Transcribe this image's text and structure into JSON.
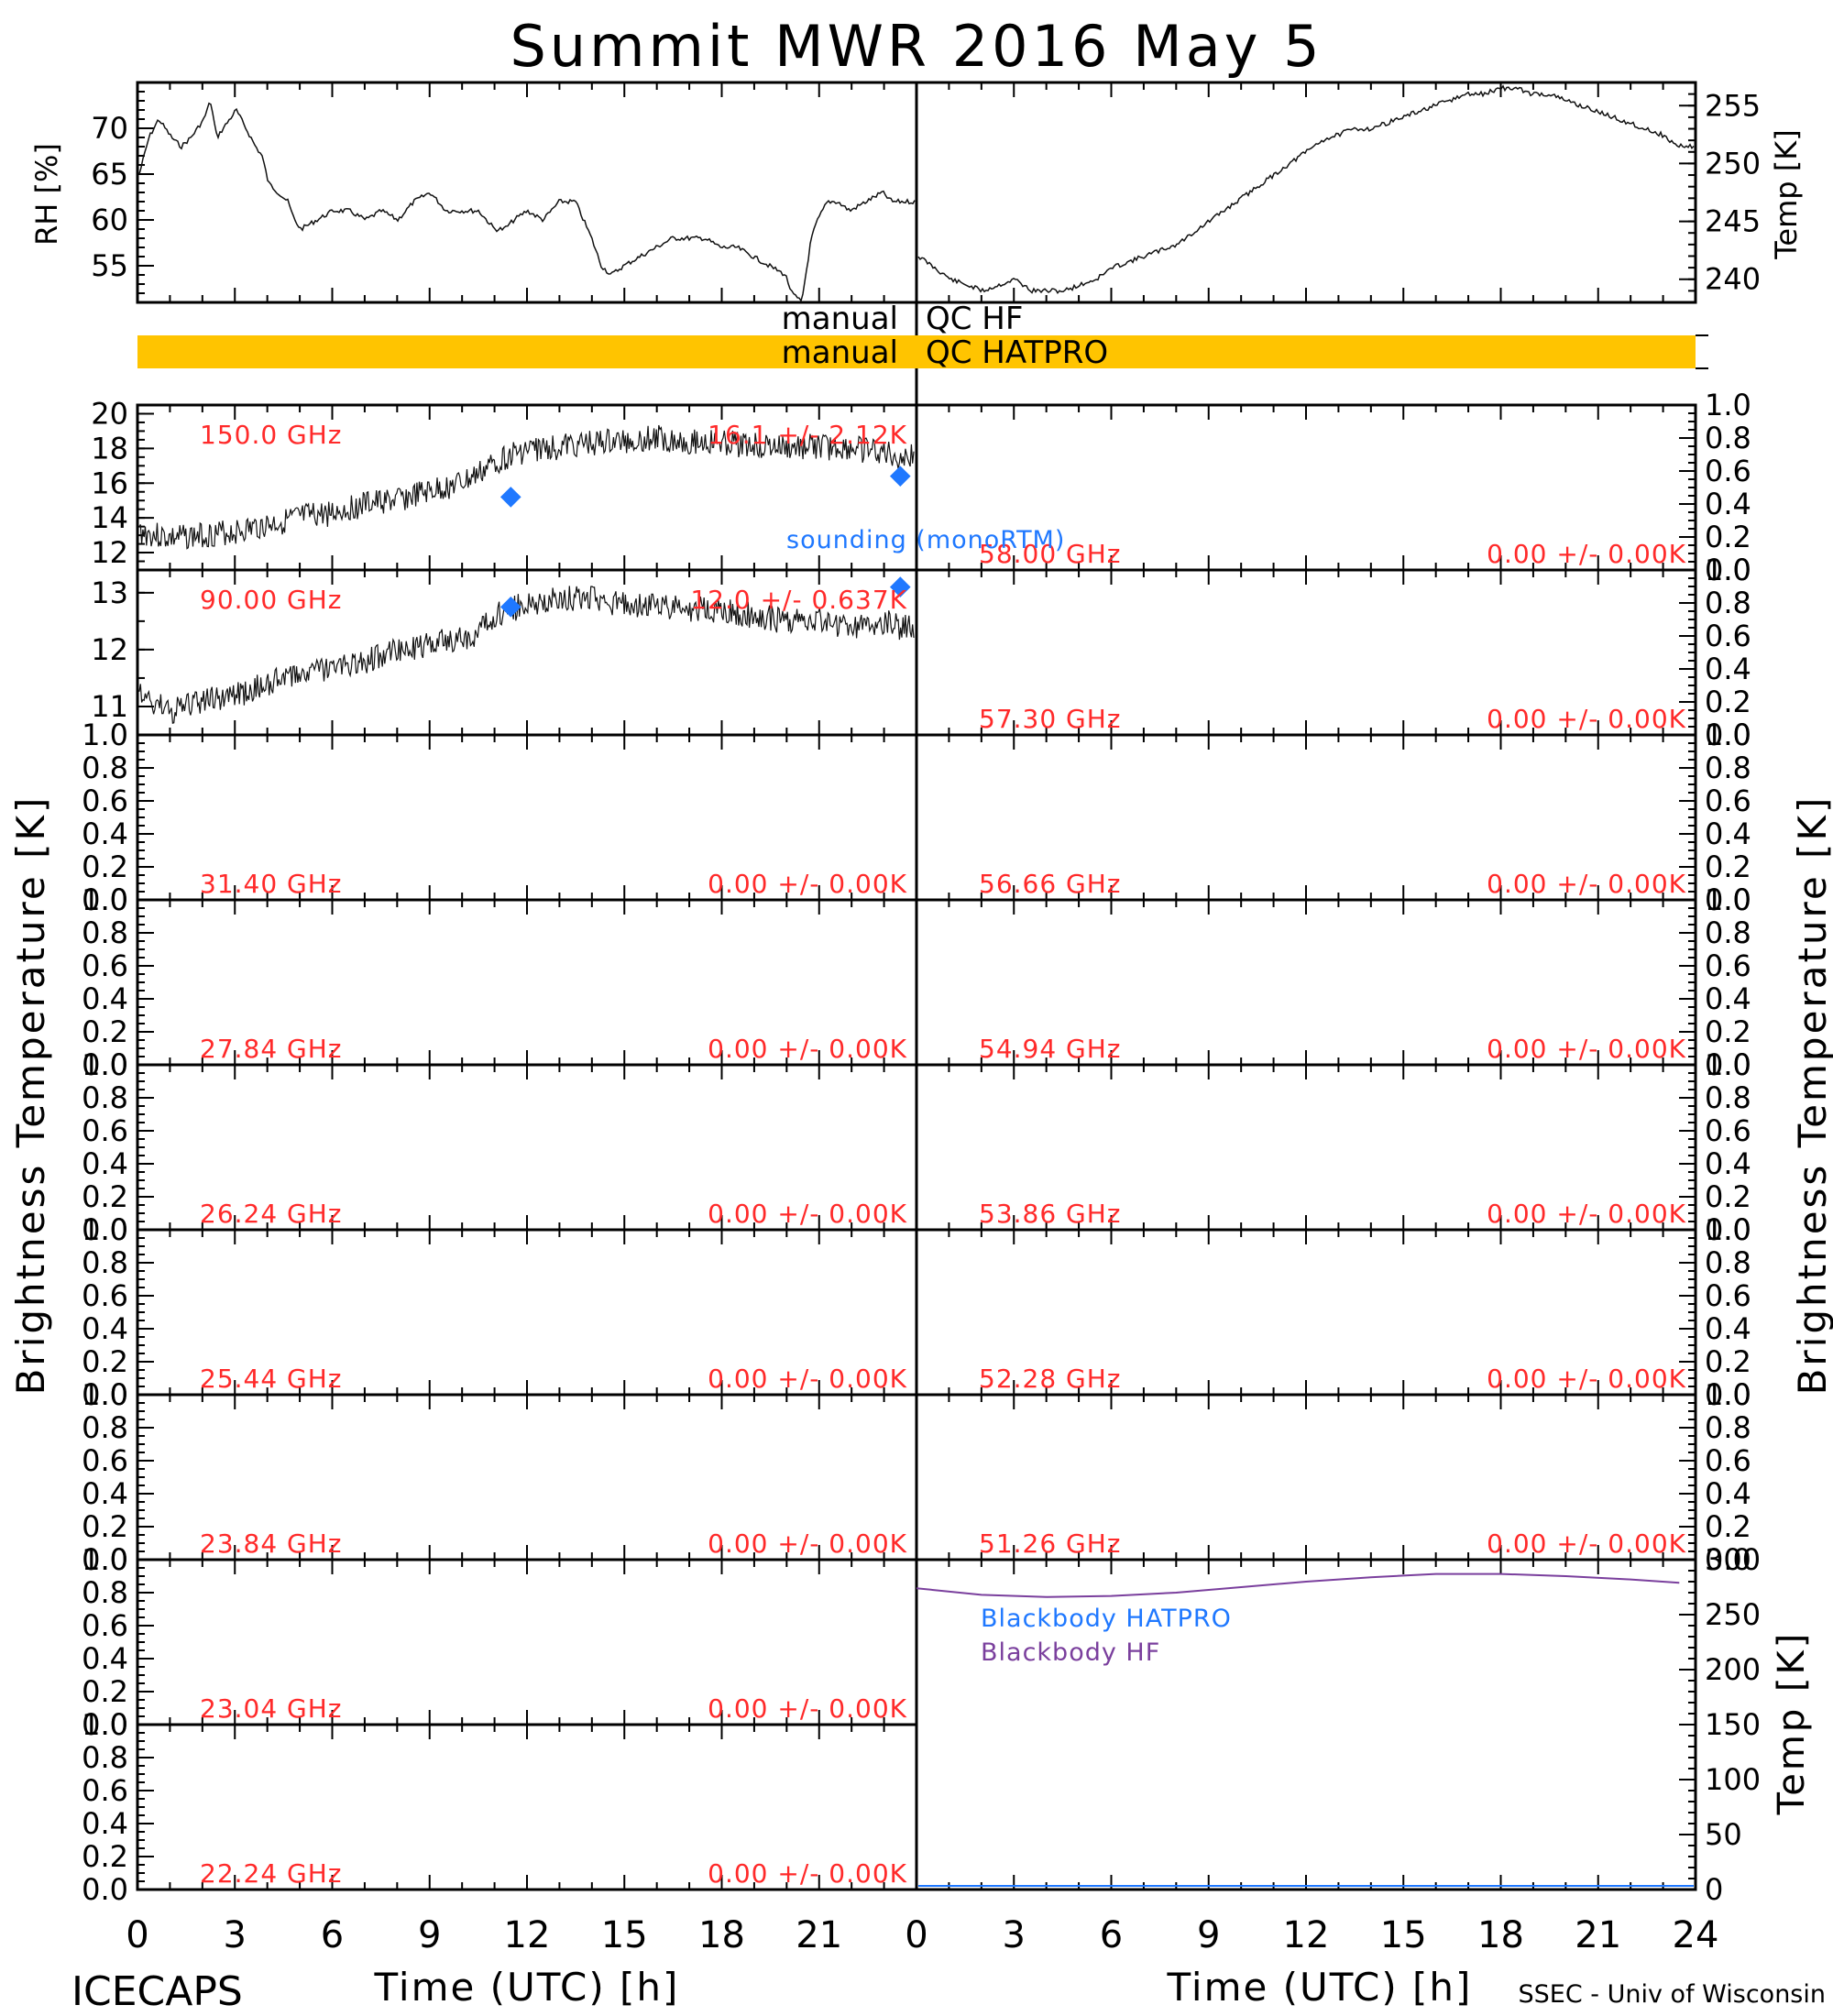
{
  "title": "Summit MWR 2016 May  5",
  "footer": {
    "left": "ICECAPS",
    "right": "SSEC - Univ of Wisconsin"
  },
  "colors": {
    "axis": "#000000",
    "trace": "#111111",
    "label_red": "#ff2a2a",
    "blue": "#1f78ff",
    "purple": "#7a3f9d",
    "qc_bar": "#ffc400"
  },
  "panel_texts": {
    "rh_ylabel": "RH [%]",
    "temp_ylabel": "Temp [K]",
    "tb_ylabel": "Brightness Temperature [K]",
    "xlabel": "Time (UTC) [h]",
    "qc_hf_left": "manual",
    "qc_hf_right": "QC HF",
    "qc_hatpro_left": "manual",
    "qc_hatpro_right": "QC HATPRO",
    "sounding_label": "sounding (monoRTM)",
    "bb_hatpro": "Blackbody HATPRO",
    "bb_hf": "Blackbody HF"
  },
  "chart_data": [
    {
      "id": "rh",
      "type": "line",
      "ylabel": "RH [%]",
      "xlim": [
        0,
        24
      ],
      "ylim": [
        51,
        75
      ],
      "yticks": [
        55,
        60,
        65,
        70
      ],
      "x": [
        0,
        0.3,
        0.6,
        1,
        1.3,
        1.6,
        2,
        2.2,
        2.4,
        2.6,
        3,
        3.3,
        3.6,
        3.8,
        4,
        4.3,
        4.6,
        4.8,
        5,
        5.5,
        6,
        6.5,
        7,
        7.5,
        8,
        8.5,
        9,
        9.5,
        10,
        10.5,
        11,
        11.3,
        11.6,
        12,
        12.5,
        13,
        13.5,
        14,
        14.3,
        14.6,
        15,
        15.5,
        16,
        16.5,
        17,
        17.5,
        18,
        18.5,
        19,
        19.5,
        20,
        20.2,
        20.5,
        20.8,
        21,
        21.3,
        21.6,
        22,
        22.5,
        23,
        23.3
      ],
      "y": [
        65,
        69,
        71,
        69,
        68,
        69,
        71,
        73,
        69,
        70,
        72,
        70,
        68,
        67,
        64,
        63,
        62,
        60,
        59,
        60,
        61,
        61,
        60,
        61,
        60,
        62,
        63,
        61,
        61,
        61,
        59,
        59,
        60,
        61,
        60,
        62,
        62,
        58,
        55,
        54,
        55,
        56,
        57,
        58,
        58,
        58,
        57,
        57,
        56,
        55,
        54,
        52,
        51,
        58,
        60,
        62,
        62,
        61,
        62,
        63,
        62
      ]
    },
    {
      "id": "air_temp",
      "type": "line",
      "ylabel": "Temp [K]",
      "xlim": [
        0,
        24
      ],
      "ylim": [
        238,
        257
      ],
      "yticks": [
        240,
        245,
        250,
        255
      ],
      "x": [
        0,
        0.5,
        1,
        1.5,
        2,
        2.5,
        3,
        3.5,
        4,
        4.5,
        5,
        5.5,
        6,
        6.5,
        7,
        7.5,
        8,
        8.5,
        9,
        9.5,
        10,
        10.5,
        11,
        11.5,
        12,
        12.5,
        13,
        13.5,
        14,
        14.5,
        15,
        15.5,
        16,
        16.5,
        17,
        17.5,
        18,
        18.5,
        19,
        19.5,
        20,
        20.5,
        21,
        21.5,
        22,
        22.5,
        23,
        23.5
      ],
      "y": [
        242,
        241,
        240,
        239.5,
        239,
        239.5,
        240,
        239,
        239,
        239,
        239.5,
        240,
        241,
        241.5,
        242,
        242.5,
        243,
        244,
        245,
        246,
        247,
        248,
        249,
        250,
        251,
        252,
        252.5,
        253,
        253,
        253.5,
        254,
        254.5,
        255,
        255.5,
        256,
        256,
        256.5,
        256.5,
        256,
        256,
        255.5,
        255,
        254.5,
        254,
        253.5,
        253,
        252.5,
        251.5
      ]
    },
    {
      "id": "tb_150",
      "type": "line",
      "freq_label": "150.0 GHz",
      "stat_label": "16.1 +/- 2.12K",
      "ylim": [
        11,
        20.5
      ],
      "yticks": [
        12,
        14,
        16,
        18,
        20
      ],
      "x": [
        0,
        1,
        2,
        3,
        4,
        5,
        6,
        7,
        8,
        9,
        10,
        10.5,
        11,
        11.5,
        12,
        13,
        14,
        15,
        16,
        17,
        18,
        19,
        20,
        21,
        22,
        23,
        23.5
      ],
      "y": [
        13.2,
        12.8,
        13.0,
        13.2,
        13.6,
        14.0,
        14.3,
        14.8,
        15.0,
        15.5,
        16.0,
        16.5,
        17.2,
        17.6,
        17.9,
        18.1,
        18.3,
        18.4,
        18.6,
        18.4,
        18.3,
        18.2,
        18.0,
        18.1,
        18.0,
        17.8,
        17.5
      ],
      "sounding_points": [
        {
          "x": 11.5,
          "y": 15.2
        },
        {
          "x": 23.5,
          "y": 16.4
        }
      ]
    },
    {
      "id": "tb_90",
      "type": "line",
      "freq_label": "90.00 GHz",
      "stat_label": "12.0 +/- 0.637K",
      "ylim": [
        10.5,
        13.4
      ],
      "yticks": [
        11,
        12,
        13
      ],
      "x": [
        0,
        1,
        2,
        3,
        4,
        5,
        6,
        7,
        8,
        9,
        10,
        10.5,
        11,
        11.5,
        12,
        13,
        14,
        15,
        16,
        17,
        18,
        19,
        20,
        21,
        22,
        23,
        23.5
      ],
      "y": [
        11.2,
        10.9,
        11.1,
        11.2,
        11.4,
        11.6,
        11.7,
        11.8,
        12.0,
        12.1,
        12.2,
        12.3,
        12.6,
        12.7,
        12.8,
        12.9,
        12.9,
        12.8,
        12.8,
        12.7,
        12.7,
        12.6,
        12.5,
        12.5,
        12.4,
        12.5,
        12.4
      ],
      "sounding_points": [
        {
          "x": 11.5,
          "y": 12.75
        },
        {
          "x": 23.5,
          "y": 13.1
        }
      ]
    },
    {
      "id": "tb_31",
      "type": "line",
      "freq_label": "31.40 GHz",
      "stat_label": "0.00 +/- 0.00K"
    },
    {
      "id": "tb_2784",
      "type": "line",
      "freq_label": "27.84 GHz",
      "stat_label": "0.00 +/- 0.00K"
    },
    {
      "id": "tb_2624",
      "type": "line",
      "freq_label": "26.24 GHz",
      "stat_label": "0.00 +/- 0.00K"
    },
    {
      "id": "tb_2544",
      "type": "line",
      "freq_label": "25.44 GHz",
      "stat_label": "0.00 +/- 0.00K"
    },
    {
      "id": "tb_2384",
      "type": "line",
      "freq_label": "23.84 GHz",
      "stat_label": "0.00 +/- 0.00K"
    },
    {
      "id": "tb_2304",
      "type": "line",
      "freq_label": "23.04 GHz",
      "stat_label": "0.00 +/- 0.00K"
    },
    {
      "id": "tb_2224",
      "type": "line",
      "freq_label": "22.24 GHz",
      "stat_label": "0.00 +/- 0.00K"
    },
    {
      "id": "tb_5800",
      "type": "line",
      "freq_label": "58.00 GHz",
      "stat_label": "0.00 +/- 0.00K"
    },
    {
      "id": "tb_5730",
      "type": "line",
      "freq_label": "57.30 GHz",
      "stat_label": "0.00 +/- 0.00K"
    },
    {
      "id": "tb_5666",
      "type": "line",
      "freq_label": "56.66 GHz",
      "stat_label": "0.00 +/- 0.00K"
    },
    {
      "id": "tb_5494",
      "type": "line",
      "freq_label": "54.94 GHz",
      "stat_label": "0.00 +/- 0.00K"
    },
    {
      "id": "tb_5386",
      "type": "line",
      "freq_label": "53.86 GHz",
      "stat_label": "0.00 +/- 0.00K"
    },
    {
      "id": "tb_5228",
      "type": "line",
      "freq_label": "52.28 GHz",
      "stat_label": "0.00 +/- 0.00K"
    },
    {
      "id": "tb_5126",
      "type": "line",
      "freq_label": "51.26 GHz",
      "stat_label": "0.00 +/- 0.00K"
    },
    {
      "id": "blackbody",
      "type": "line",
      "ylabel": "Temp [K]",
      "ylim": [
        0,
        300
      ],
      "yticks": [
        0,
        50,
        100,
        150,
        200,
        250,
        300
      ],
      "series": [
        {
          "name": "Blackbody HATPRO",
          "x": [],
          "y": []
        },
        {
          "name": "Blackbody HF",
          "x": [
            0,
            2,
            4,
            6,
            8,
            10,
            12,
            14,
            16,
            18,
            20,
            22,
            23.5
          ],
          "y": [
            274,
            268,
            266,
            267,
            270,
            275,
            280,
            284,
            287,
            287,
            285,
            282,
            279
          ]
        }
      ]
    }
  ],
  "shared_axes": {
    "x_tick_labels": [
      "0",
      "3",
      "6",
      "9",
      "12",
      "15",
      "18",
      "21",
      "24"
    ],
    "x_tick_labels_left": [
      "0",
      "3",
      "6",
      "9",
      "12",
      "15",
      "18",
      "21"
    ],
    "empty_yticks": [
      "0.0",
      "0.2",
      "0.4",
      "0.6",
      "0.8",
      "1.0"
    ]
  }
}
